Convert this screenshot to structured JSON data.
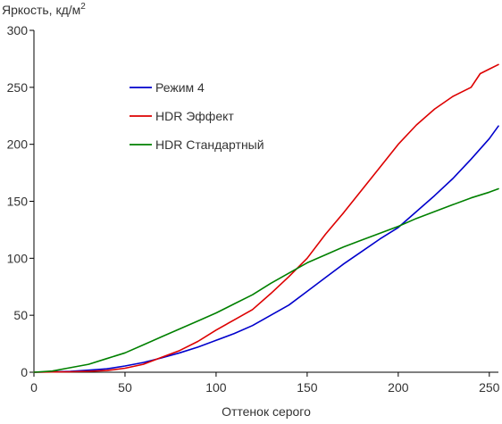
{
  "chart_data": {
    "type": "line",
    "title": "",
    "ylabel": "Яркость, кд/м",
    "ylabel_superscript": "2",
    "xlabel": "Оттенок серого",
    "xlim": [
      0,
      255
    ],
    "ylim": [
      0,
      300
    ],
    "x_ticks": [
      0,
      50,
      100,
      150,
      200,
      250
    ],
    "y_ticks": [
      0,
      50,
      100,
      150,
      200,
      250,
      300
    ],
    "grid": false,
    "legend_position": "upper-left-inside",
    "series": [
      {
        "name": "Режим 4",
        "color": "#0000cc",
        "x": [
          0,
          10,
          20,
          30,
          40,
          50,
          60,
          70,
          80,
          90,
          100,
          110,
          120,
          130,
          140,
          150,
          160,
          170,
          180,
          190,
          200,
          210,
          220,
          230,
          240,
          250,
          255
        ],
        "y": [
          0,
          0.3,
          0.8,
          1.8,
          3,
          5.5,
          8.5,
          12.5,
          17,
          22,
          28,
          34,
          41,
          50,
          59,
          71,
          83,
          95,
          106,
          117,
          127,
          141,
          155,
          170,
          187,
          205,
          216
        ]
      },
      {
        "name": "HDR Эффект",
        "color": "#dd0000",
        "x": [
          0,
          10,
          20,
          30,
          40,
          50,
          60,
          70,
          80,
          90,
          100,
          110,
          120,
          130,
          140,
          150,
          160,
          170,
          180,
          190,
          200,
          210,
          220,
          230,
          240,
          245,
          250,
          255
        ],
        "y": [
          0,
          0.2,
          0.4,
          0.8,
          1.5,
          3.5,
          7,
          13,
          19,
          27,
          37,
          46,
          55,
          69,
          84,
          100,
          121,
          140,
          160,
          180,
          200,
          217,
          231,
          242,
          250,
          262,
          266,
          270
        ]
      },
      {
        "name": "HDR Стандартный",
        "color": "#008000",
        "x": [
          0,
          10,
          20,
          30,
          40,
          50,
          60,
          70,
          80,
          90,
          100,
          110,
          120,
          130,
          140,
          150,
          160,
          170,
          180,
          190,
          200,
          210,
          220,
          230,
          240,
          250,
          255
        ],
        "y": [
          0,
          1,
          4,
          7,
          12,
          17,
          24,
          31,
          38,
          45,
          52,
          60,
          68,
          78,
          87,
          96,
          103,
          110,
          116,
          122,
          128,
          135,
          141,
          147,
          153,
          158,
          161
        ]
      }
    ]
  }
}
